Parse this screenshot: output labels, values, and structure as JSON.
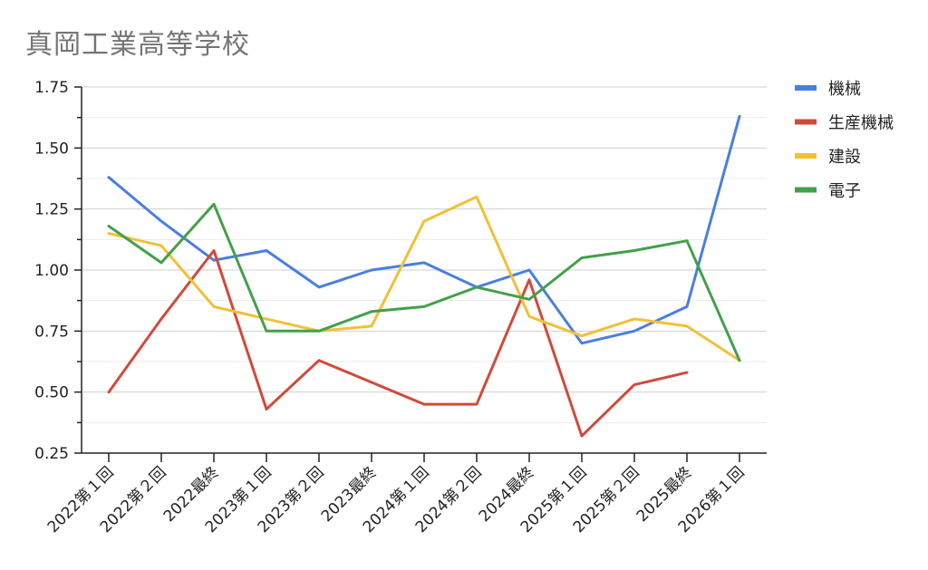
{
  "chart_data": {
    "type": "line",
    "title": "真岡工業高等学校",
    "categories": [
      "2022第１回",
      "2022第２回",
      "2022最終",
      "2023第１回",
      "2023第２回",
      "2023最終",
      "2024第１回",
      "2024第２回",
      "2024最終",
      "2025第１回",
      "2025第２回",
      "2025最終",
      "2026第１回"
    ],
    "ylim": [
      0.25,
      1.75
    ],
    "yticks": [
      "0.25",
      "0.50",
      "0.75",
      "1.00",
      "1.25",
      "1.50",
      "1.75"
    ],
    "grid": true,
    "legend": "right",
    "series": [
      {
        "name": "機械",
        "color": "#4a7fe0",
        "values": [
          1.38,
          1.2,
          1.04,
          1.08,
          0.93,
          1.0,
          1.03,
          0.93,
          1.0,
          0.7,
          0.75,
          0.85,
          1.63
        ]
      },
      {
        "name": "生産機械",
        "color": "#d04a3a",
        "values": [
          0.5,
          0.8,
          1.08,
          0.43,
          0.63,
          0.54,
          0.45,
          0.45,
          0.96,
          0.32,
          0.53,
          0.58,
          null
        ]
      },
      {
        "name": "建設",
        "color": "#f2c037",
        "values": [
          1.15,
          1.1,
          0.85,
          0.8,
          0.75,
          0.77,
          1.2,
          1.3,
          0.81,
          0.73,
          0.8,
          0.77,
          0.63
        ]
      },
      {
        "name": "電子",
        "color": "#43a048",
        "values": [
          1.18,
          1.03,
          1.27,
          0.75,
          0.75,
          0.83,
          0.85,
          0.93,
          0.88,
          1.05,
          1.08,
          1.12,
          0.63
        ]
      }
    ]
  }
}
